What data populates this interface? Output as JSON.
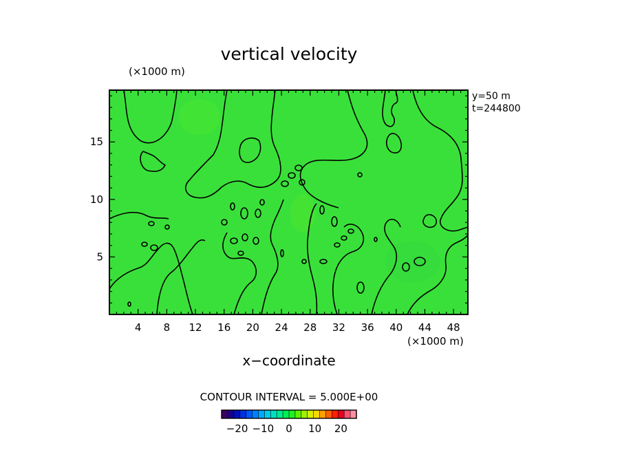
{
  "chart_data": {
    "type": "heatmap",
    "title": "vertical velocity",
    "xlabel": "x−coordinate",
    "x_unit": "(×1000 m)",
    "y_unit": "(×1000 m)",
    "info": [
      "y=50  m",
      "t=244800"
    ],
    "xlim": [
      0,
      50
    ],
    "ylim": [
      0,
      19.5
    ],
    "x_ticks": [
      4,
      8,
      12,
      16,
      20,
      24,
      28,
      32,
      36,
      40,
      44,
      48
    ],
    "y_ticks": [
      5,
      10,
      15
    ],
    "contour_interval_label": "CONTOUR INTERVAL =  5.000E+00",
    "colorbar": {
      "min": -26,
      "max": 26,
      "ticks": [
        -20,
        -10,
        0,
        10,
        20
      ],
      "tick_labels": [
        "−20",
        "−10",
        "0",
        "10",
        "20"
      ],
      "colors": [
        "#3c0060",
        "#1a0088",
        "#0010b8",
        "#0030e0",
        "#0058ff",
        "#0080ff",
        "#00a8ff",
        "#00cce8",
        "#00e0c0",
        "#00e890",
        "#00ee50",
        "#20f020",
        "#60f000",
        "#a0f000",
        "#d8f000",
        "#f8d800",
        "#ffa000",
        "#ff6000",
        "#ff2000",
        "#e80020",
        "#ff5070",
        "#ff90a0"
      ]
    },
    "field": "near-zero vertical velocity throughout; fill is light green (~0)"
  }
}
